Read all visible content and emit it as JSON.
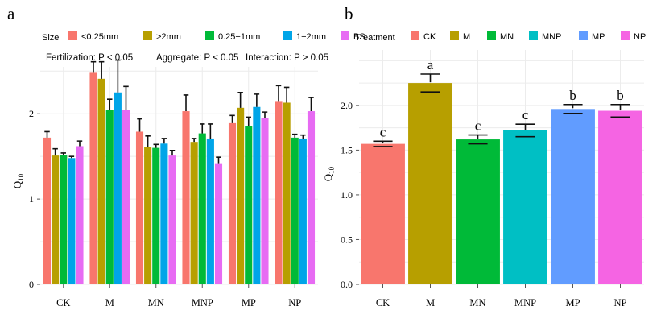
{
  "panel_a_label": "a",
  "panel_b_label": "b",
  "panel_a_legend": {
    "title": "Size",
    "items": [
      {
        "label": "<0.25mm",
        "color": "#F8766D"
      },
      {
        "label": ">2mm",
        "color": "#B79F00"
      },
      {
        "label": "0.25−1mm",
        "color": "#00BA38"
      },
      {
        "label": "1−2mm",
        "color": "#00A5E8"
      },
      {
        "label": "BS",
        "color": "#E76BF3"
      }
    ]
  },
  "panel_a_annotations": {
    "fertilization": "Fertilization: P < 0.05",
    "aggregate": "Aggregate: P < 0.05",
    "interaction": "Interaction: P > 0.05"
  },
  "panel_b_legend": {
    "title": "Treatment",
    "items": [
      {
        "label": "CK",
        "color": "#F8766D"
      },
      {
        "label": "M",
        "color": "#B79F00"
      },
      {
        "label": "MN",
        "color": "#00BA38"
      },
      {
        "label": "MNP",
        "color": "#00BFC4"
      },
      {
        "label": "MP",
        "color": "#619CFF"
      },
      {
        "label": "NP",
        "color": "#F564E3"
      }
    ]
  },
  "chart_data": [
    {
      "type": "bar",
      "title": "",
      "xlabel": "",
      "ylabel": "Q10",
      "ylim": [
        0,
        2.55
      ],
      "yticks": [
        0,
        1,
        2
      ],
      "grid": true,
      "legend_position": "top",
      "categories": [
        "CK",
        "M",
        "MN",
        "MNP",
        "MP",
        "NP"
      ],
      "series": [
        {
          "name": "<0.25mm",
          "values": [
            1.72,
            2.48,
            1.79,
            2.03,
            1.89,
            2.14
          ],
          "errors": [
            0.07,
            0.13,
            0.15,
            0.19,
            0.09,
            0.19
          ]
        },
        {
          "name": ">2mm",
          "values": [
            1.51,
            2.41,
            1.61,
            1.67,
            2.07,
            2.13
          ],
          "errors": [
            0.08,
            0.2,
            0.13,
            0.04,
            0.18,
            0.18
          ]
        },
        {
          "name": "0.25−1mm",
          "values": [
            1.52,
            2.04,
            1.6,
            1.77,
            1.86,
            1.72
          ],
          "errors": [
            0.02,
            0.13,
            0.04,
            0.11,
            0.1,
            0.04
          ]
        },
        {
          "name": "1−2mm",
          "values": [
            1.48,
            2.25,
            1.65,
            1.71,
            2.08,
            1.71
          ],
          "errors": [
            0.02,
            0.38,
            0.06,
            0.17,
            0.15,
            0.04
          ]
        },
        {
          "name": "BS",
          "values": [
            1.62,
            2.04,
            1.51,
            1.42,
            1.95,
            2.03
          ],
          "errors": [
            0.06,
            0.28,
            0.06,
            0.07,
            0.07,
            0.16
          ]
        }
      ]
    },
    {
      "type": "bar",
      "title": "",
      "xlabel": "",
      "ylabel": "Q10",
      "ylim": [
        0,
        2.62
      ],
      "yticks": [
        0.0,
        0.5,
        1.0,
        1.5,
        2.0
      ],
      "grid": true,
      "legend_position": "top",
      "categories": [
        "CK",
        "M",
        "MN",
        "MNP",
        "MP",
        "NP"
      ],
      "values": [
        1.57,
        2.25,
        1.62,
        1.72,
        1.96,
        1.94
      ],
      "errors": [
        0.03,
        0.1,
        0.05,
        0.07,
        0.05,
        0.07
      ],
      "significance": [
        "c",
        "a",
        "c",
        "c",
        "b",
        "b"
      ]
    }
  ]
}
